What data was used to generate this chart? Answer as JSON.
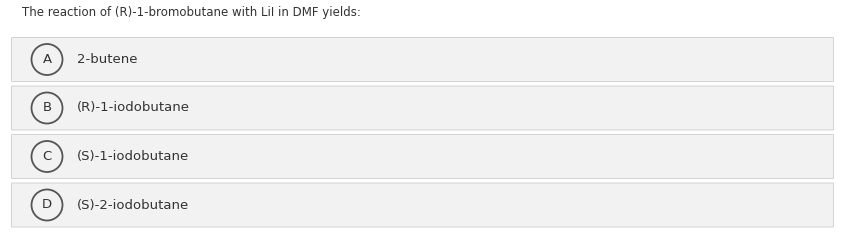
{
  "title": "The reaction of (R)-1-bromobutane with LiI in DMF yields:",
  "options": [
    {
      "label": "A",
      "text": "2-butene"
    },
    {
      "label": "B",
      "text": "(R)-1-iodobutane"
    },
    {
      "label": "C",
      "text": "(S)-1-iodobutane"
    },
    {
      "label": "D",
      "text": "(S)-2-iodobutane"
    }
  ],
  "bg_color": "#ffffff",
  "option_bg_color": "#f2f2f2",
  "option_border_color": "#cccccc",
  "title_fontsize": 8.5,
  "option_fontsize": 9.5,
  "label_fontsize": 9.5,
  "text_color": "#333333",
  "circle_edge_color": "#555555",
  "circle_face_color": "#f2f2f2",
  "fig_width": 8.45,
  "fig_height": 2.36
}
